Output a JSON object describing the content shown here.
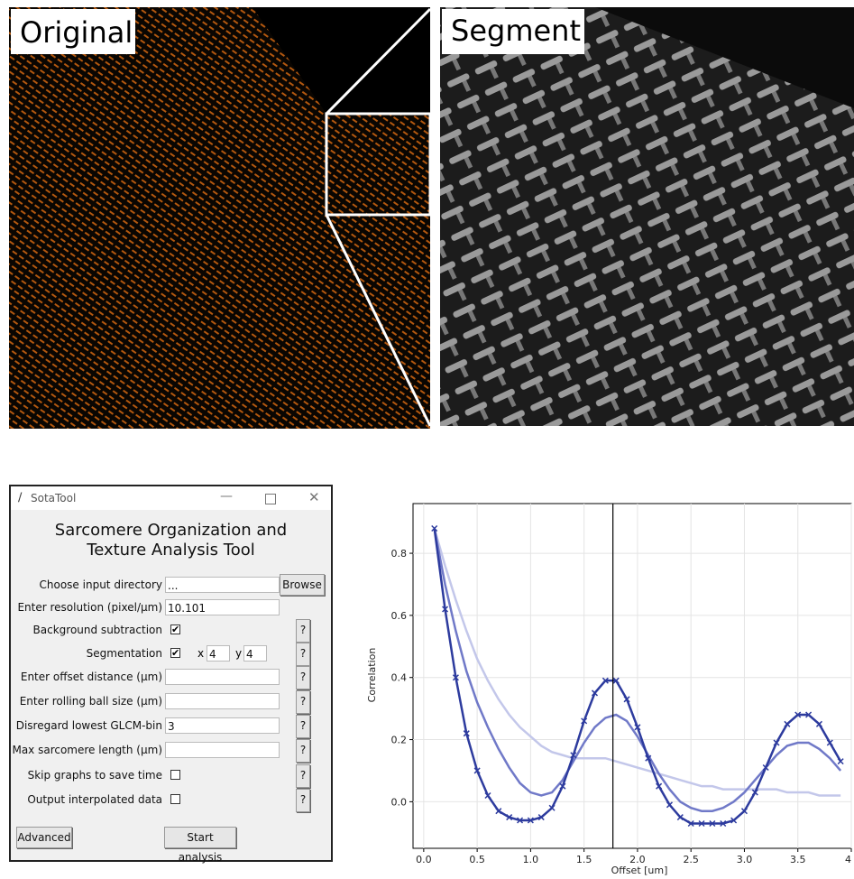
{
  "images": {
    "original_label": "Original",
    "segment_label": "Segment"
  },
  "window": {
    "title": "SotaTool",
    "heading": "Sarcomere Organization and Texture Analysis Tool",
    "help_label": "?",
    "rows": [
      {
        "label": "Choose input directory",
        "value": "...",
        "button": "Browse"
      },
      {
        "label": "Enter resolution (pixel/µm)",
        "value": "10.101"
      },
      {
        "label": "Background subtraction",
        "checked": true,
        "help": true
      },
      {
        "label": "Segmentation",
        "checked": true,
        "x_label": "x",
        "x_value": "4",
        "y_label": "y",
        "y_value": "4",
        "help": true
      },
      {
        "label": "Enter offset distance (µm)",
        "input": true,
        "help": true
      },
      {
        "label": "Enter rolling ball size (µm)",
        "input": true,
        "help": true
      },
      {
        "label": "Disregard lowest GLCM-bin",
        "value": "3",
        "help": true
      },
      {
        "label": "Max sarcomere length (µm)",
        "input": true,
        "help": true
      },
      {
        "label": "Skip graphs to save time",
        "checked": false,
        "help": true
      },
      {
        "label": "Output interpolated data",
        "checked": false,
        "help": true
      }
    ],
    "buttons": [
      "Advanced",
      "Start analysis"
    ]
  },
  "chart_data": {
    "type": "line",
    "xlabel": "Offset [um]",
    "ylabel": "Correlation",
    "xlim": [
      -0.1,
      4.0
    ],
    "ylim": [
      -0.15,
      0.96
    ],
    "xticks": [
      {
        "value": 0,
        "label": "0.0"
      },
      {
        "value": 0.5,
        "label": "0.5"
      },
      {
        "value": 1,
        "label": "1.0"
      },
      {
        "value": 1.5,
        "label": "1.5"
      },
      {
        "value": 2,
        "label": "2.0"
      },
      {
        "value": 2.5,
        "label": "2.5"
      },
      {
        "value": 3,
        "label": "3.0"
      },
      {
        "value": 3.5,
        "label": "3.5"
      },
      4
    ],
    "yticks": [
      {
        "value": 0,
        "label": "0.0"
      },
      0.2,
      0.4,
      0.6,
      0.8
    ],
    "grid": true,
    "vline": 1.77,
    "x": [
      0.1,
      0.2,
      0.3,
      0.4,
      0.5,
      0.6,
      0.7,
      0.8,
      0.9,
      1.0,
      1.1,
      1.2,
      1.3,
      1.4,
      1.5,
      1.6,
      1.7,
      1.8,
      1.9,
      2.0,
      2.1,
      2.2,
      2.3,
      2.4,
      2.5,
      2.6,
      2.7,
      2.8,
      2.9,
      3.0,
      3.1,
      3.2,
      3.3,
      3.4,
      3.5,
      3.6,
      3.7,
      3.8,
      3.9
    ],
    "series": [
      {
        "color": "#c3c7ea",
        "values": [
          0.88,
          0.76,
          0.65,
          0.55,
          0.46,
          0.39,
          0.33,
          0.28,
          0.24,
          0.21,
          0.18,
          0.16,
          0.15,
          0.14,
          0.14,
          0.14,
          0.14,
          0.13,
          0.12,
          0.11,
          0.1,
          0.09,
          0.08,
          0.07,
          0.06,
          0.05,
          0.05,
          0.04,
          0.04,
          0.04,
          0.04,
          0.04,
          0.04,
          0.03,
          0.03,
          0.03,
          0.02,
          0.02,
          0.02
        ]
      },
      {
        "color": "#7079c8",
        "values": [
          0.88,
          0.7,
          0.55,
          0.42,
          0.32,
          0.24,
          0.17,
          0.11,
          0.06,
          0.03,
          0.02,
          0.03,
          0.07,
          0.13,
          0.19,
          0.24,
          0.27,
          0.28,
          0.26,
          0.21,
          0.15,
          0.09,
          0.04,
          0.0,
          -0.02,
          -0.03,
          -0.03,
          -0.02,
          0.0,
          0.03,
          0.07,
          0.11,
          0.15,
          0.18,
          0.19,
          0.19,
          0.17,
          0.14,
          0.1
        ]
      },
      {
        "color": "#2d3b9e",
        "marker": "x",
        "values": [
          0.88,
          0.62,
          0.4,
          0.22,
          0.1,
          0.02,
          -0.03,
          -0.05,
          -0.06,
          -0.06,
          -0.05,
          -0.02,
          0.05,
          0.15,
          0.26,
          0.35,
          0.39,
          0.39,
          0.33,
          0.24,
          0.14,
          0.05,
          -0.01,
          -0.05,
          -0.07,
          -0.07,
          -0.07,
          -0.07,
          -0.06,
          -0.03,
          0.03,
          0.11,
          0.19,
          0.25,
          0.28,
          0.28,
          0.25,
          0.19,
          0.13
        ]
      }
    ]
  }
}
